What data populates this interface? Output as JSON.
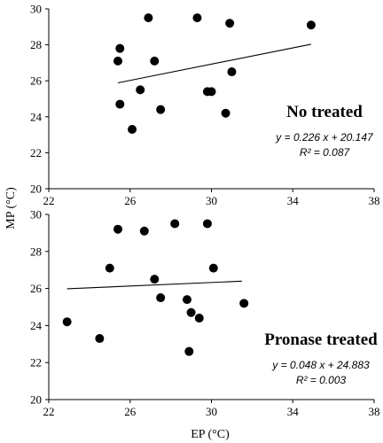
{
  "figure": {
    "ylabel": "MP (°C)",
    "xlabel": "EP (°C)"
  },
  "chart_data": [
    {
      "type": "scatter",
      "title": "No treated",
      "equation": "y = 0.226 x + 20.147",
      "r2": "R² = 0.087",
      "xlim": [
        22,
        38
      ],
      "ylim": [
        20,
        30
      ],
      "xticks": [
        22,
        26,
        30,
        34,
        38
      ],
      "yticks": [
        20,
        22,
        24,
        26,
        28,
        30
      ],
      "x_tick_labels": [
        "22",
        "26",
        "30",
        "34",
        "38"
      ],
      "y_tick_labels": [
        "20",
        "22",
        "24",
        "26",
        "28",
        "30"
      ],
      "points": [
        {
          "x": 25.4,
          "y": 27.1
        },
        {
          "x": 25.5,
          "y": 27.8
        },
        {
          "x": 25.5,
          "y": 24.7
        },
        {
          "x": 26.1,
          "y": 23.3
        },
        {
          "x": 26.5,
          "y": 25.5
        },
        {
          "x": 26.9,
          "y": 29.5
        },
        {
          "x": 27.2,
          "y": 27.1
        },
        {
          "x": 27.5,
          "y": 24.4
        },
        {
          "x": 29.3,
          "y": 29.5
        },
        {
          "x": 29.8,
          "y": 25.4
        },
        {
          "x": 30.0,
          "y": 25.4
        },
        {
          "x": 30.7,
          "y": 24.2
        },
        {
          "x": 30.9,
          "y": 29.2
        },
        {
          "x": 31.0,
          "y": 26.5
        },
        {
          "x": 34.9,
          "y": 29.1
        }
      ],
      "trendline": {
        "slope": 0.226,
        "intercept": 20.147,
        "x_range": [
          25.4,
          34.9
        ]
      },
      "grid": false
    },
    {
      "type": "scatter",
      "title": "Pronase treated",
      "equation": "y = 0.048 x + 24.883",
      "r2": "R² = 0.003",
      "xlim": [
        22,
        38
      ],
      "ylim": [
        20,
        30
      ],
      "xticks": [
        22,
        26,
        30,
        34,
        38
      ],
      "yticks": [
        20,
        22,
        24,
        26,
        28,
        30
      ],
      "x_tick_labels": [
        "22",
        "26",
        "30",
        "34",
        "38"
      ],
      "y_tick_labels": [
        "20",
        "22",
        "24",
        "26",
        "28",
        "30"
      ],
      "points": [
        {
          "x": 22.9,
          "y": 24.2
        },
        {
          "x": 24.5,
          "y": 23.3
        },
        {
          "x": 25.0,
          "y": 27.1
        },
        {
          "x": 25.4,
          "y": 29.2
        },
        {
          "x": 26.7,
          "y": 29.1
        },
        {
          "x": 27.2,
          "y": 26.5
        },
        {
          "x": 27.5,
          "y": 25.5
        },
        {
          "x": 28.2,
          "y": 29.5
        },
        {
          "x": 28.8,
          "y": 25.4
        },
        {
          "x": 29.0,
          "y": 24.7
        },
        {
          "x": 28.9,
          "y": 22.6
        },
        {
          "x": 29.4,
          "y": 24.4
        },
        {
          "x": 29.8,
          "y": 29.5
        },
        {
          "x": 30.1,
          "y": 27.1
        },
        {
          "x": 31.6,
          "y": 25.2
        }
      ],
      "trendline": {
        "slope": 0.048,
        "intercept": 24.883,
        "x_range": [
          22.9,
          31.5
        ]
      },
      "grid": false
    }
  ]
}
